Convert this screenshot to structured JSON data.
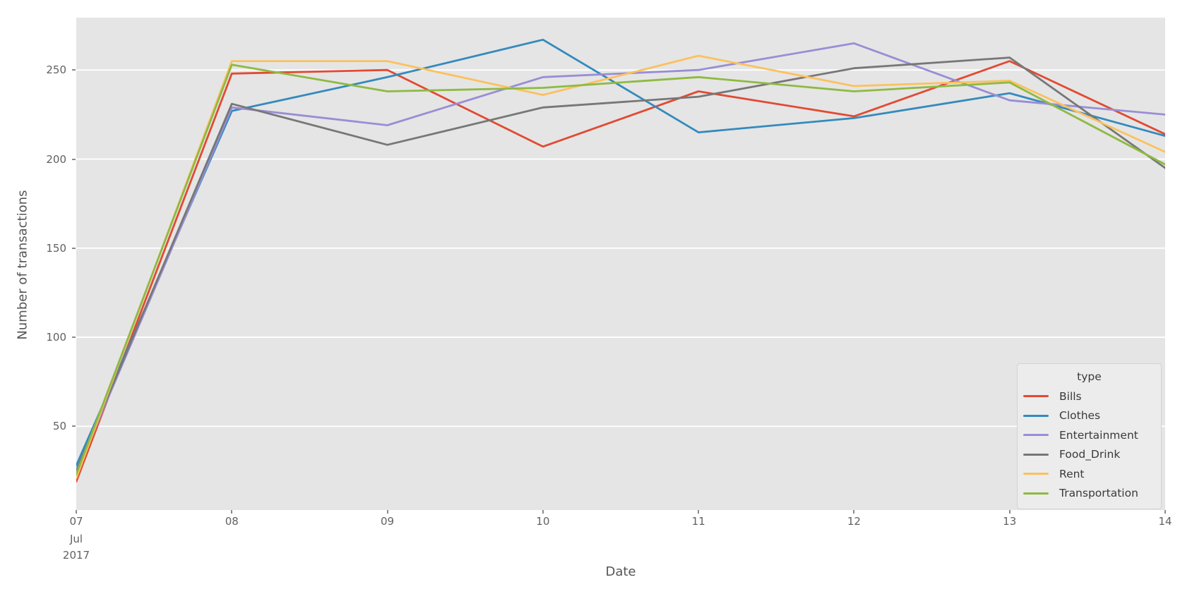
{
  "chart_data": {
    "type": "line",
    "title": "",
    "xlabel": "Date",
    "ylabel": "Number of transactions",
    "x_month_label": "Jul",
    "x_year_label": "2017",
    "x_tick_labels": [
      "07",
      "08",
      "09",
      "10",
      "11",
      "12",
      "13",
      "14"
    ],
    "x_values": [
      7,
      8,
      9,
      10,
      11,
      12,
      13,
      14
    ],
    "xlim": [
      7,
      14
    ],
    "ylim": [
      3,
      279.4
    ],
    "y_ticks": [
      50,
      100,
      150,
      200,
      250
    ],
    "grid": "horizontal white gridlines only",
    "plot_background": "#e5e5e5",
    "legend": {
      "title": "type",
      "position": "lower right"
    },
    "series": [
      {
        "name": "Bills",
        "color": "#E24A33",
        "values": [
          19,
          248,
          250,
          207,
          238,
          224,
          255,
          214
        ]
      },
      {
        "name": "Clothes",
        "color": "#348ABD",
        "values": [
          28,
          227,
          246,
          267,
          215,
          223,
          237,
          213
        ]
      },
      {
        "name": "Entertainment",
        "color": "#988ED5",
        "values": [
          24,
          229,
          219,
          246,
          250,
          265,
          233,
          225
        ]
      },
      {
        "name": "Food_Drink",
        "color": "#777777",
        "values": [
          25,
          231,
          208,
          229,
          235,
          251,
          257,
          195
        ]
      },
      {
        "name": "Rent",
        "color": "#FBC15E",
        "values": [
          21,
          255,
          255,
          236,
          258,
          241,
          244,
          204
        ]
      },
      {
        "name": "Transportation",
        "color": "#8EBA42",
        "values": [
          23,
          253,
          238,
          240,
          246,
          238,
          243,
          197
        ]
      }
    ]
  }
}
